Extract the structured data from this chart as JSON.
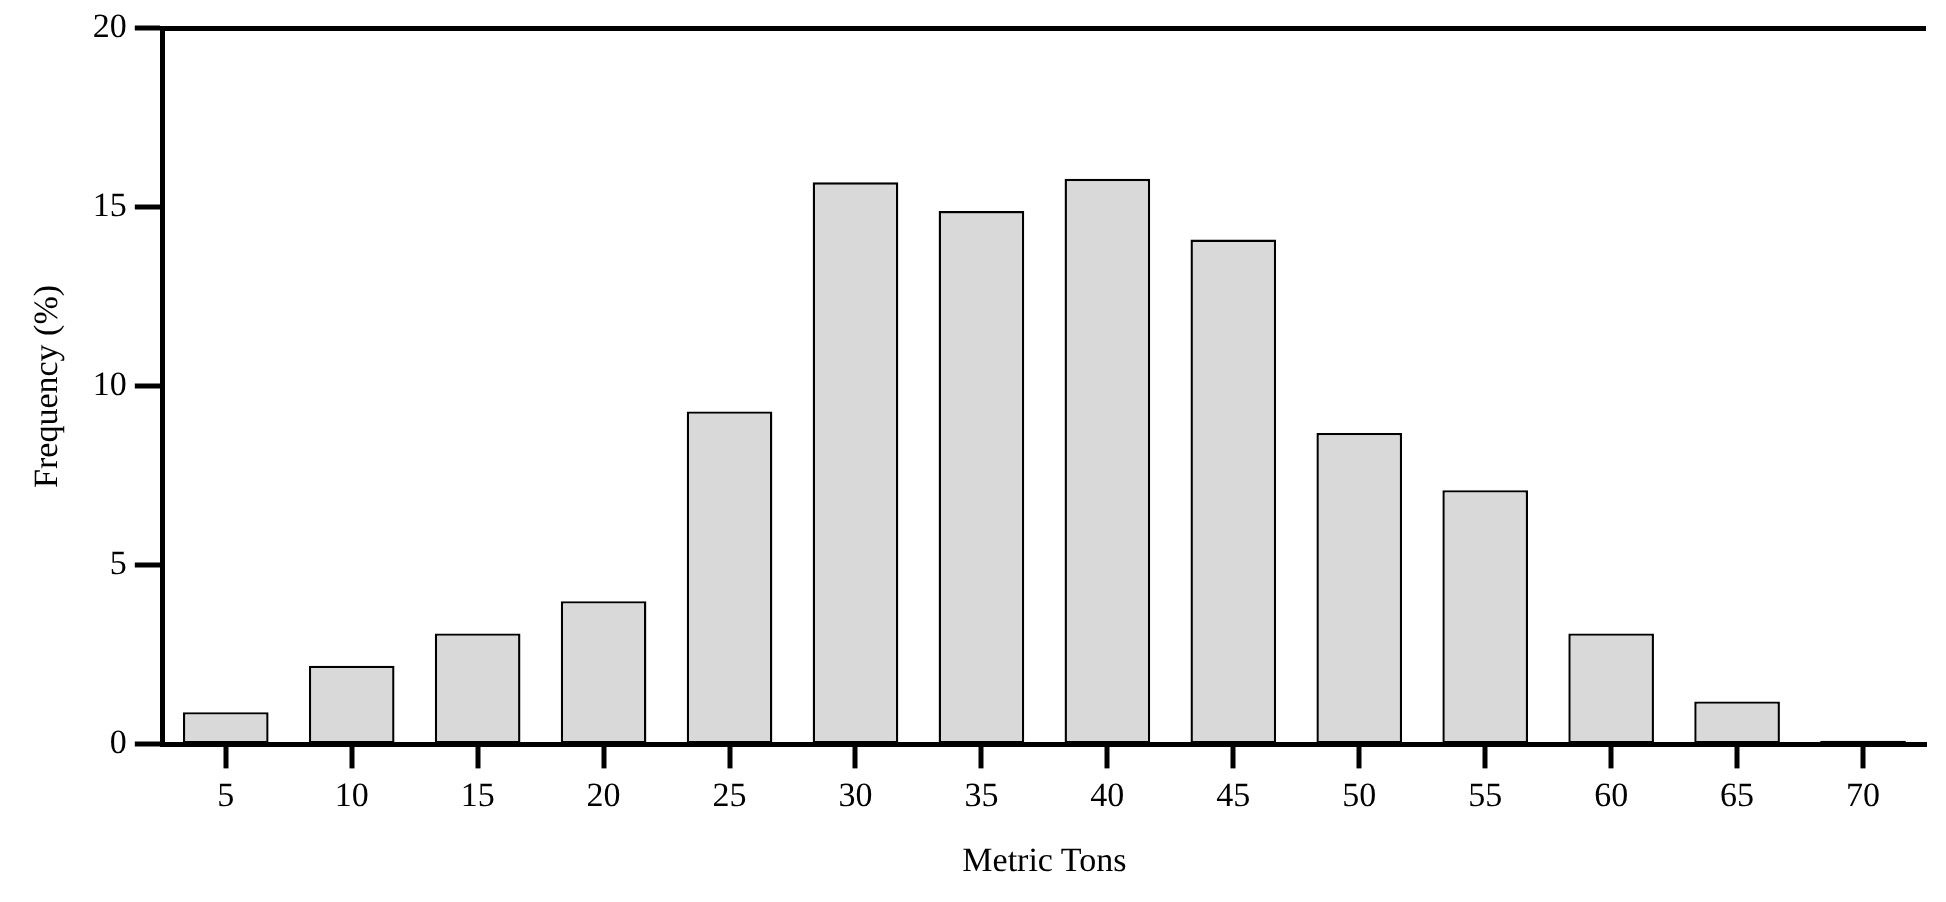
{
  "chart_data": {
    "type": "bar",
    "xlabel": "Metric Tons",
    "ylabel": "Frequency (%)",
    "categories": [
      "5",
      "10",
      "15",
      "20",
      "25",
      "30",
      "35",
      "40",
      "45",
      "50",
      "55",
      "60",
      "65",
      "70"
    ],
    "values": [
      0.9,
      2.2,
      3.1,
      4.0,
      9.3,
      15.7,
      14.9,
      15.8,
      14.1,
      8.7,
      7.1,
      3.1,
      1.2,
      0.1
    ],
    "colors": [
      "#d9d9d9",
      "#d9d9d9",
      "#d9d9d9",
      "#d9d9d9",
      "#d9d9d9",
      "#d9d9d9",
      "#d9d9d9",
      "#d9d9d9",
      "#d9d9d9",
      "#d9d9d9",
      "#d9d9d9",
      "#d9d9d9",
      "#d9d9d9",
      "#000000"
    ],
    "ylim": [
      0,
      20
    ],
    "yticks": [
      0,
      5,
      10,
      15,
      20
    ],
    "grid": false,
    "legend": false
  }
}
